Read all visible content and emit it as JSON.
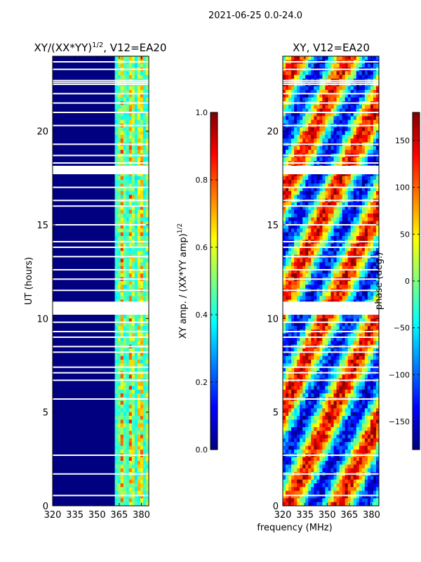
{
  "figure_title": "2021-06-25 0.0-24.0",
  "colors": {
    "background": "#000080",
    "jet": [
      "#00007f",
      "#0000ff",
      "#007fff",
      "#00ffff",
      "#7fff7f",
      "#ffff00",
      "#ff7f00",
      "#ff0000",
      "#7f0000"
    ],
    "gap": "#ffffff"
  },
  "chart_data": [
    {
      "type": "heatmap",
      "title": "XY/(XX*YY)",
      "title_sup": "1/2",
      "title_suffix": ", V12=EA20",
      "xlabel": "",
      "ylabel": "UT (hours)",
      "xlim": [
        320,
        385
      ],
      "ylim": [
        0,
        24
      ],
      "xticks": [
        "320",
        "335",
        "350",
        "365",
        "380"
      ],
      "yticks": [
        "0",
        "5",
        "10",
        "15",
        "20"
      ],
      "colorbar": {
        "label": "XY amp. / (XX*YY amp)",
        "label_sup": "1/2",
        "range": [
          0.0,
          1.0
        ],
        "ticks": [
          "0.0",
          "0.2",
          "0.4",
          "0.6",
          "0.8",
          "1.0"
        ],
        "tick_values": [
          0.0,
          0.2,
          0.4,
          0.6,
          0.8,
          1.0
        ]
      },
      "active_band_mhz": [
        361.5,
        385
      ],
      "gaps_hours": [
        0.55,
        1.7,
        2.7,
        5.7,
        6.7,
        7.1,
        7.4,
        8.2,
        8.5,
        9.0,
        9.3,
        9.8,
        10.25,
        10.45,
        11.5,
        12.1,
        12.6,
        13.3,
        13.8,
        14.1,
        15.0,
        16.0,
        16.3,
        17.0,
        17.9,
        18.0,
        18.3,
        18.7,
        19.3,
        20.3,
        21.0,
        21.5,
        22.0,
        22.5,
        22.6,
        22.7,
        23.3,
        23.7
      ],
      "gap_wide_hours": [
        [
          10.2,
          10.9
        ],
        [
          17.7,
          18.15
        ]
      ]
    },
    {
      "type": "heatmap",
      "title": "XY, V12=EA20",
      "xlabel": "frequency (MHz)",
      "ylabel": "",
      "xlim": [
        320,
        385
      ],
      "ylim": [
        0,
        24
      ],
      "xticks": [
        "320",
        "335",
        "350",
        "365",
        "380"
      ],
      "yticks": [
        "0",
        "5",
        "10",
        "15",
        "20"
      ],
      "colorbar": {
        "label": "phase (deg.)",
        "range": [
          -180,
          180
        ],
        "ticks": [
          "−150",
          "−100",
          "−50",
          "0",
          "50",
          "100",
          "150"
        ],
        "tick_values": [
          -150,
          -100,
          -50,
          0,
          50,
          100,
          150
        ]
      },
      "gaps_hours": [
        0.55,
        1.7,
        2.7,
        5.7,
        6.7,
        7.1,
        7.4,
        8.2,
        8.5,
        9.0,
        9.3,
        9.8,
        10.25,
        10.45,
        11.5,
        12.1,
        12.6,
        13.3,
        13.8,
        14.1,
        15.0,
        16.0,
        16.3,
        17.0,
        17.9,
        18.0,
        18.3,
        18.7,
        19.3,
        20.3,
        21.0,
        21.5,
        22.0,
        22.5,
        22.6,
        22.7,
        23.3,
        23.7
      ],
      "gap_wide_hours": [
        [
          10.2,
          10.9
        ],
        [
          17.7,
          18.15
        ]
      ]
    }
  ]
}
